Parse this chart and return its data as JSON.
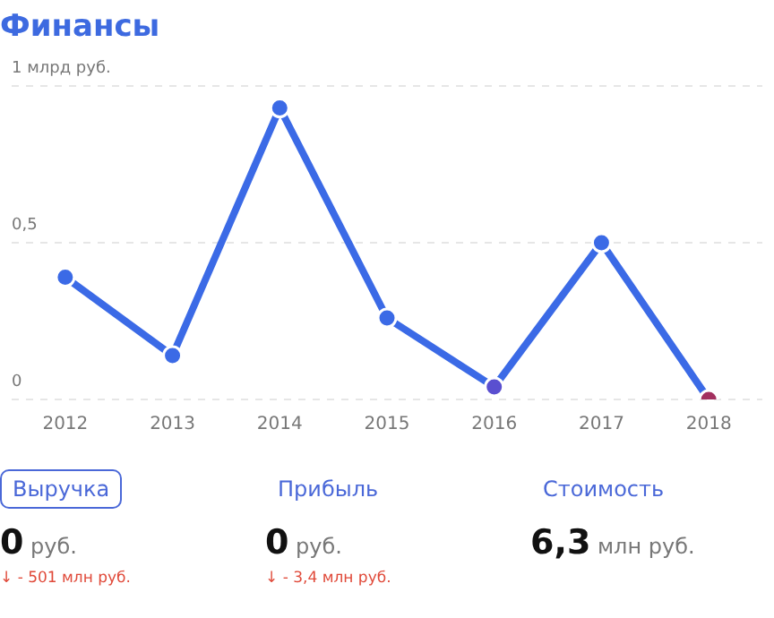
{
  "chart_data": [
    {
      "type": "line",
      "title": "Финансы",
      "categories": [
        "2012",
        "2013",
        "2014",
        "2015",
        "2016",
        "2017",
        "2018"
      ],
      "series": [
        {
          "color": "#3b6ae6",
          "colors": [
            "#3b6ae6",
            "#3b6ae6",
            "#3b6ae6",
            "#3b6ae6",
            "#5a4fd0",
            "#3b6ae6",
            "#a3305f"
          ],
          "values": [
            0.39,
            0.14,
            0.93,
            0.26,
            0.04,
            0.5,
            0
          ]
        }
      ],
      "ylim": [
        0,
        1
      ],
      "yticks": [
        0,
        {
          "value": 0.5,
          "label": "0,5"
        },
        {
          "value": 1,
          "label": "1 млрд руб."
        }
      ],
      "grid": "y",
      "marker": "circle",
      "line_style": "solid",
      "legend": false
    },
    {
      "type": "other",
      "categories": [
        "Выручка",
        "Прибыль",
        "Стоимость"
      ],
      "annotations": [
        "0 руб.",
        "0 руб.",
        "6,3 млн руб.",
        "↓ - 501 млн руб.",
        "↓ - 3,4 млн руб."
      ]
    }
  ]
}
